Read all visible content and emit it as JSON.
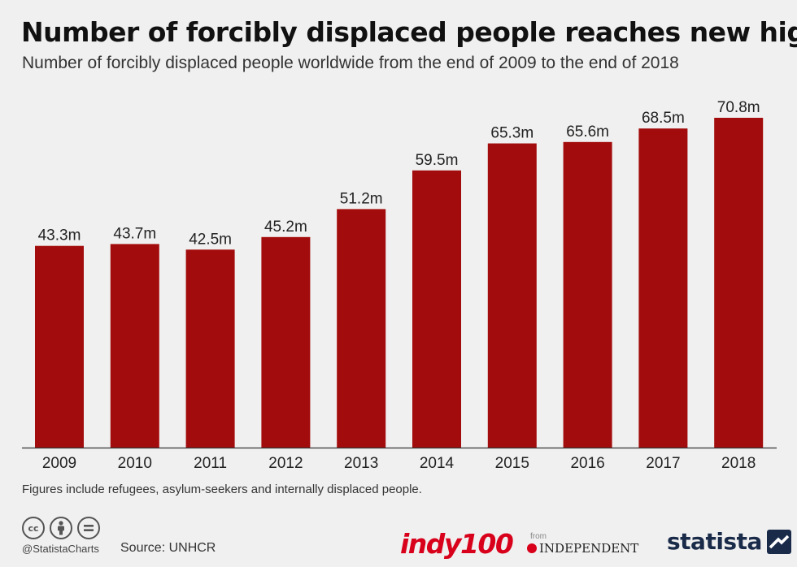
{
  "header": {
    "title": "Number of forcibly displaced people reaches new high",
    "subtitle": "Number of forcibly displaced people worldwide from the end of 2009 to the end of 2018"
  },
  "chart_data": {
    "type": "bar",
    "title": "Number of forcibly displaced people reaches new high",
    "subtitle": "Number of forcibly displaced people worldwide from the end of 2009 to the end of 2018",
    "xlabel": "",
    "ylabel": "",
    "unit": "m",
    "categories": [
      "2009",
      "2010",
      "2011",
      "2012",
      "2013",
      "2014",
      "2015",
      "2016",
      "2017",
      "2018"
    ],
    "values": [
      43.3,
      43.7,
      42.5,
      45.2,
      51.2,
      59.5,
      65.3,
      65.6,
      68.5,
      70.8
    ],
    "labels": [
      "43.3m",
      "43.7m",
      "42.5m",
      "45.2m",
      "51.2m",
      "59.5m",
      "65.3m",
      "65.6m",
      "68.5m",
      "70.8m"
    ],
    "ylim": [
      0,
      70.8
    ],
    "grid": false,
    "colors": {
      "bar": "#a30c0c",
      "axis": "#333333"
    }
  },
  "footer": {
    "note": "Figures include refugees, asylum-seekers and internally displaced people.",
    "handle": "@StatistaCharts",
    "source": "Source: UNHCR",
    "cc_icons": [
      "cc",
      "by",
      "nd"
    ],
    "cc_icon_names": [
      "cc-license-icon",
      "attribution-icon",
      "no-derivatives-icon"
    ],
    "indy": "indy100",
    "from": "from",
    "independent": "INDEPENDENT",
    "statista": "statista"
  }
}
